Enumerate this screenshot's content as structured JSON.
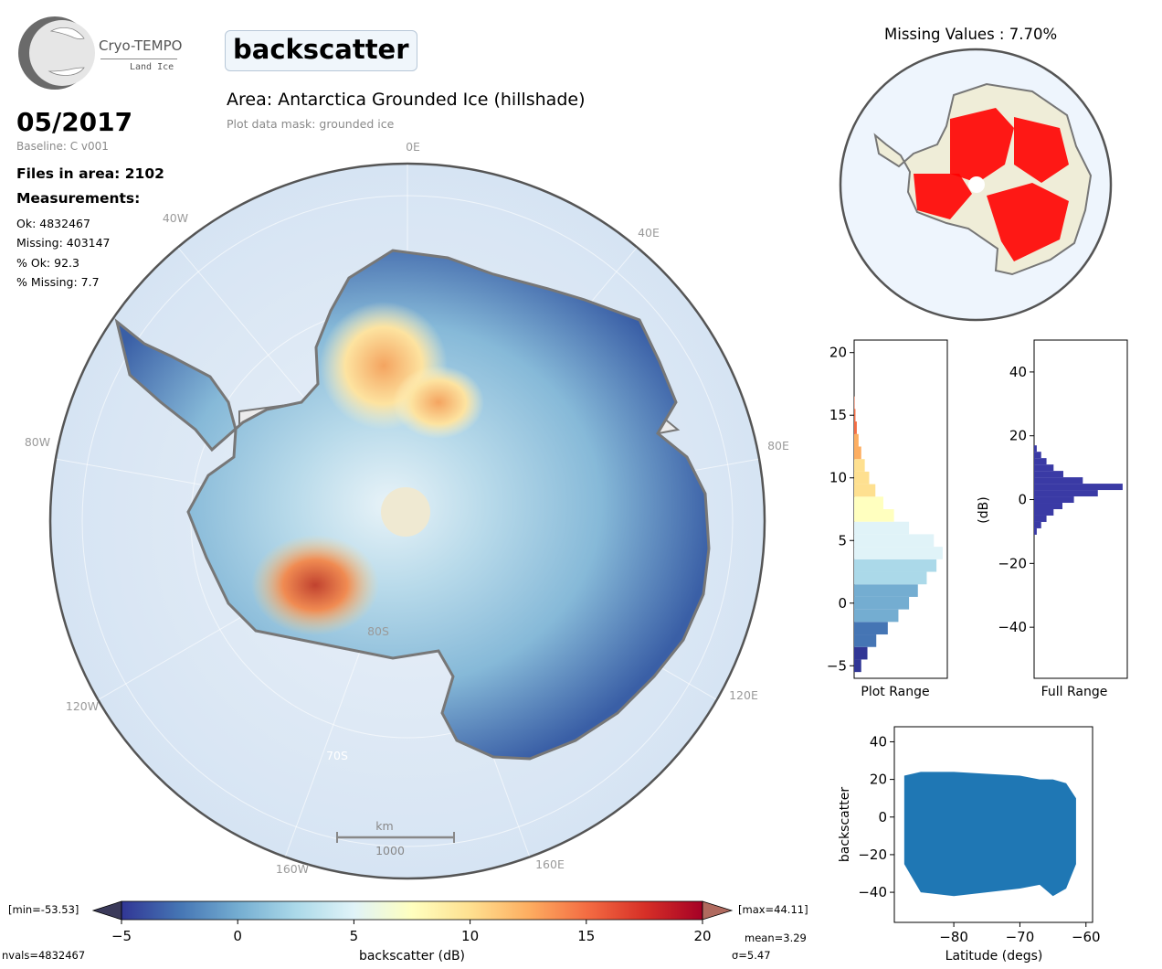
{
  "logo": {
    "name": "Cryo-TEMPO",
    "subtitle": "Land Ice"
  },
  "parameter": "backscatter",
  "area_title": "Area: Antarctica Grounded Ice (hillshade)",
  "mask_label": "Plot data mask: grounded ice",
  "date": "05/2017",
  "baseline": "Baseline: C v001",
  "files": "Files in area: 2102",
  "measurements": {
    "title": "Measurements:",
    "items": [
      "Ok: 4832467",
      "Missing: 403147",
      "% Ok: 92.3",
      "% Missing: 7.7"
    ]
  },
  "map": {
    "longitude_labels": [
      "0E",
      "40E",
      "80E",
      "120E",
      "160E",
      "160W",
      "120W",
      "80W",
      "40W"
    ],
    "latitude_labels": [
      "80S",
      "70S"
    ],
    "scale_bar": {
      "unit": "km",
      "value": "1000"
    }
  },
  "missing_values": {
    "title": "Missing Values : 7.70%"
  },
  "colors": {
    "ocean": "#dde9f6",
    "ice_shelf": "#f0f0f0",
    "coast": "#777777",
    "missing": "#ff0000",
    "hist_full": "#3a3aa5",
    "scatter": "#1f77b4",
    "colormap": [
      "#313695",
      "#4575b4",
      "#74add1",
      "#abd9e9",
      "#e0f3f8",
      "#ffffbf",
      "#fee090",
      "#fdae61",
      "#f46d43",
      "#d73027",
      "#a50026"
    ]
  },
  "colorbar": {
    "min_label": "[min=-53.53]",
    "max_label": "[max=44.11]",
    "ticks": [
      "−5",
      "0",
      "5",
      "10",
      "15",
      "20"
    ],
    "label": "backscatter (dB)",
    "mean": "mean=3.29",
    "sigma": "σ=5.47",
    "nvals": "nvals=4832467"
  },
  "chart_data": [
    {
      "type": "bar",
      "orientation": "horizontal",
      "xlabel": "Plot Range",
      "ylabel": "",
      "ylim": [
        -6,
        21
      ],
      "y_ticks": [
        "−5",
        "0",
        "5",
        "10",
        "15",
        "20"
      ],
      "bins_center": [
        -5,
        -4,
        -3,
        -2,
        -1,
        0,
        1,
        2,
        3,
        4,
        5,
        6,
        7,
        8,
        9,
        10,
        11,
        12,
        13,
        14,
        15,
        16
      ],
      "values": [
        0.08,
        0.15,
        0.25,
        0.38,
        0.5,
        0.62,
        0.72,
        0.82,
        0.93,
        1.0,
        0.9,
        0.62,
        0.45,
        0.33,
        0.24,
        0.17,
        0.12,
        0.08,
        0.05,
        0.03,
        0.015,
        0.005
      ]
    },
    {
      "type": "bar",
      "orientation": "horizontal",
      "xlabel": "Full Range",
      "ylabel": "(dB)",
      "ylim": [
        -56,
        50
      ],
      "y_ticks": [
        "−40",
        "−20",
        "0",
        "20",
        "40"
      ],
      "bins_center": [
        -10,
        -8,
        -6,
        -4,
        -2,
        0,
        2,
        4,
        6,
        8,
        10,
        12,
        14,
        16
      ],
      "values": [
        0.03,
        0.08,
        0.14,
        0.22,
        0.32,
        0.45,
        0.72,
        1.0,
        0.55,
        0.33,
        0.22,
        0.14,
        0.08,
        0.03
      ]
    },
    {
      "type": "scatter",
      "xlabel": "Latitude (degs)",
      "ylabel": "backscatter",
      "xlim": [
        -89,
        -59
      ],
      "ylim": [
        -56,
        48
      ],
      "x_ticks": [
        "−80",
        "−70",
        "−60"
      ],
      "y_ticks": [
        "−40",
        "−20",
        "0",
        "20",
        "40"
      ],
      "envelope": {
        "lat": [
          -87.5,
          -85,
          -80,
          -75,
          -70,
          -67,
          -65,
          -63,
          -61.5
        ],
        "upper": [
          22,
          24,
          24,
          23,
          22,
          20,
          20,
          18,
          10
        ],
        "lower": [
          -25,
          -40,
          -42,
          -40,
          -38,
          -36,
          -42,
          -38,
          -25
        ]
      }
    }
  ]
}
